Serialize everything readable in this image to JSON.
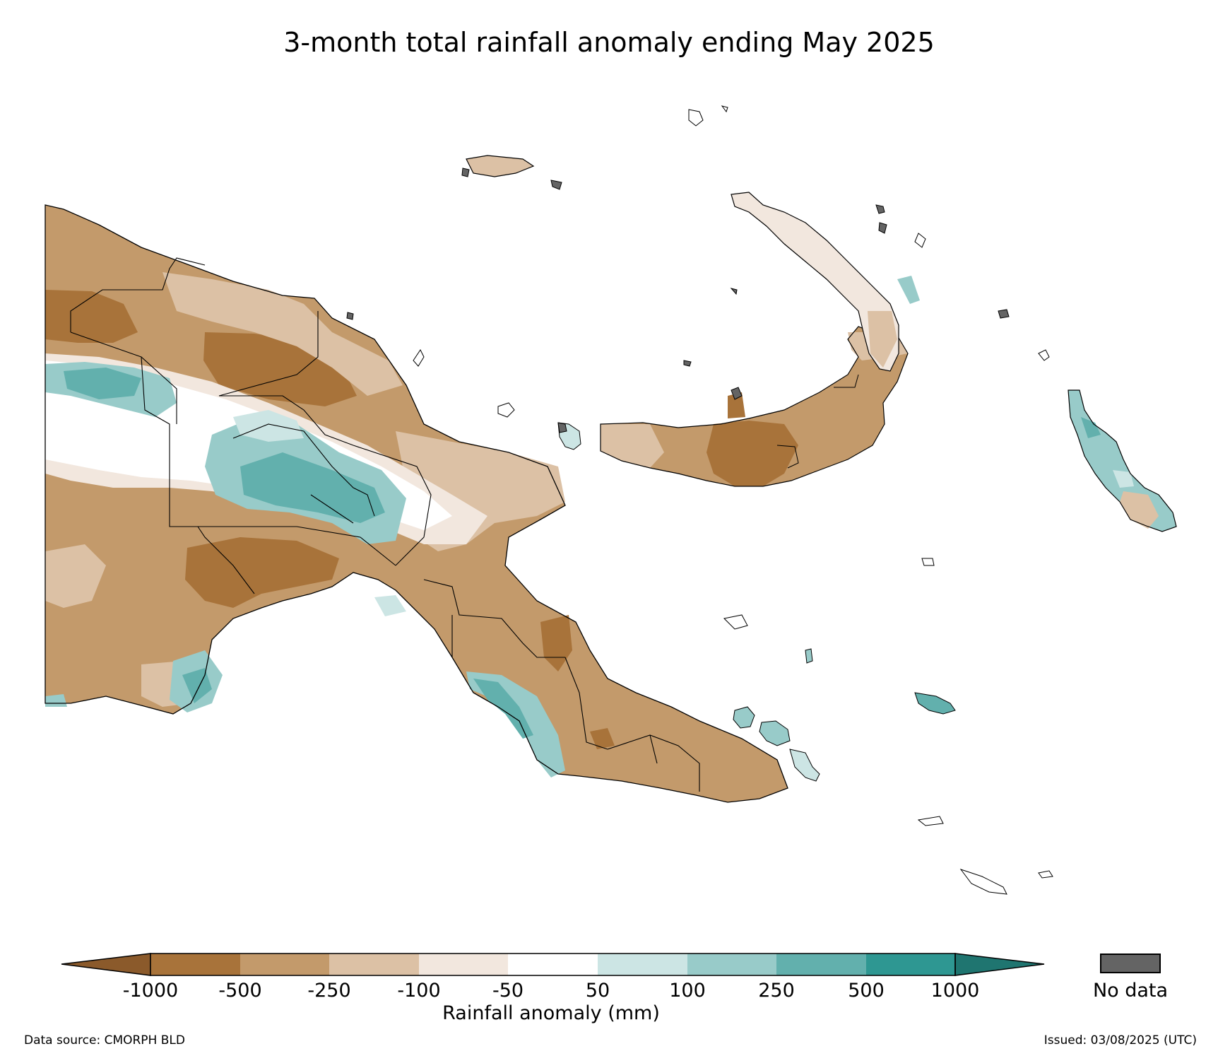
{
  "title": "3-month total rainfall anomaly ending May 2025",
  "colorbar": {
    "label": "Rainfall anomaly (mm)",
    "ticks": [
      "-1000",
      "-500",
      "-250",
      "-100",
      "-50",
      "50",
      "100",
      "250",
      "500",
      "1000"
    ],
    "colors": {
      "extend_low": "#8b5a2b",
      "band_-1000_-500": "#a8733a",
      "band_-500_-250": "#c39a6b",
      "band_-250_-100": "#dcc1a5",
      "band_-100_-50": "#f2e7de",
      "band_-50_50": "#ffffff",
      "band_50_100": "#cce5e4",
      "band_100_250": "#98cbc9",
      "band_250_500": "#62b0ad",
      "band_500_1000": "#2e9792",
      "extend_high": "#1f7570"
    }
  },
  "nodata": {
    "label": "No data",
    "color": "#646464"
  },
  "footer": {
    "source": "Data source: CMORPH BLD",
    "issued": "Issued: 03/08/2025 (UTC)"
  }
}
